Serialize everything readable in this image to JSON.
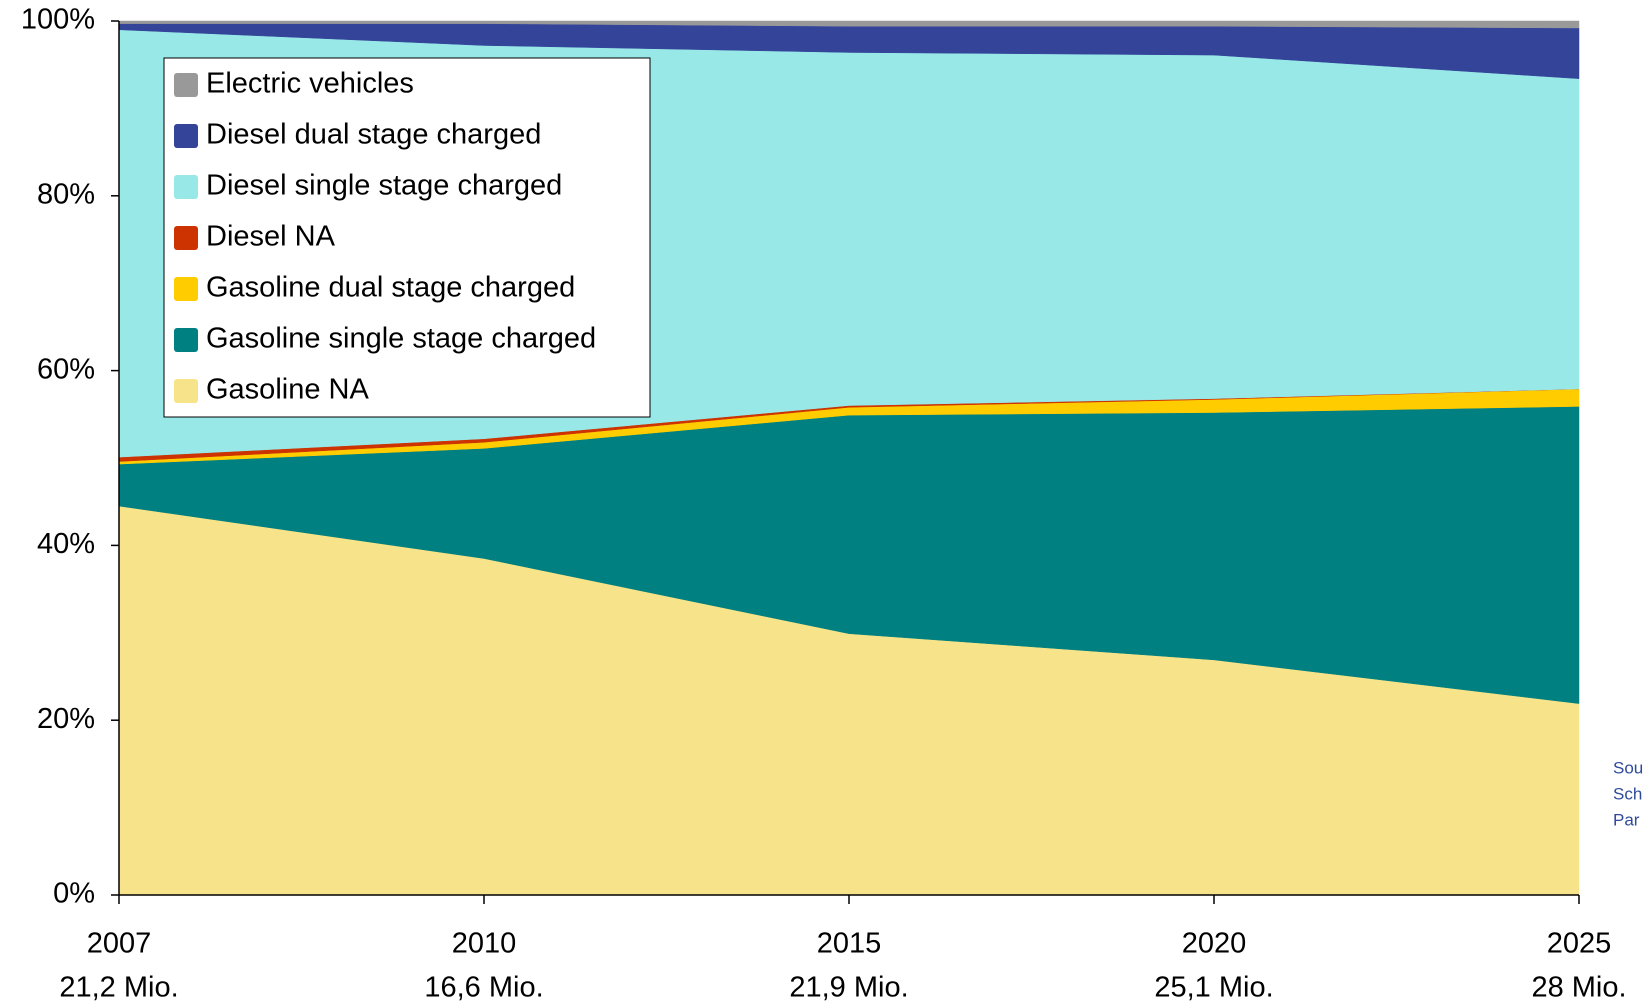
{
  "chart_data": {
    "type": "stacked_area",
    "categories": [
      "2007",
      "2010",
      "2015",
      "2020",
      "2025"
    ],
    "category_sublabels": [
      "21,2 Mio.",
      "16,6 Mio.",
      "21,9 Mio.",
      "25,1 Mio.",
      "28 Mio."
    ],
    "series": [
      {
        "name": "Gasoline NA",
        "color": "#f7e48a",
        "values": [
          44.5,
          38.5,
          29.9,
          26.9,
          21.9
        ]
      },
      {
        "name": "Gasoline single stage charged",
        "color": "#008080",
        "values": [
          4.8,
          12.6,
          25.0,
          28.3,
          34.0
        ]
      },
      {
        "name": "Gasoline dual stage charged",
        "color": "#ffcc00",
        "values": [
          0.3,
          0.7,
          0.9,
          1.5,
          2.0
        ]
      },
      {
        "name": "Diesel NA",
        "color": "#cc3300",
        "values": [
          0.5,
          0.4,
          0.2,
          0.1,
          0.0
        ]
      },
      {
        "name": "Diesel single stage charged",
        "color": "#99e8e8",
        "values": [
          48.9,
          45.0,
          40.4,
          39.3,
          35.5
        ]
      },
      {
        "name": "Diesel dual stage charged",
        "color": "#334499",
        "values": [
          0.7,
          2.5,
          3.0,
          3.3,
          5.8
        ]
      },
      {
        "name": "Electric vehicles",
        "color": "#999999",
        "values": [
          0.3,
          0.3,
          0.6,
          0.6,
          0.8
        ]
      }
    ],
    "ylim": [
      0,
      100
    ],
    "yticks": [
      {
        "value": 0,
        "label": "0%"
      },
      {
        "value": 20,
        "label": "20%"
      },
      {
        "value": 40,
        "label": "40%"
      },
      {
        "value": 60,
        "label": "60%"
      },
      {
        "value": 80,
        "label": "80%"
      },
      {
        "value": 100,
        "label": "100%"
      }
    ],
    "legend": "upper left",
    "annotation_lines": [
      "Sou",
      "Sch",
      "Par"
    ]
  }
}
